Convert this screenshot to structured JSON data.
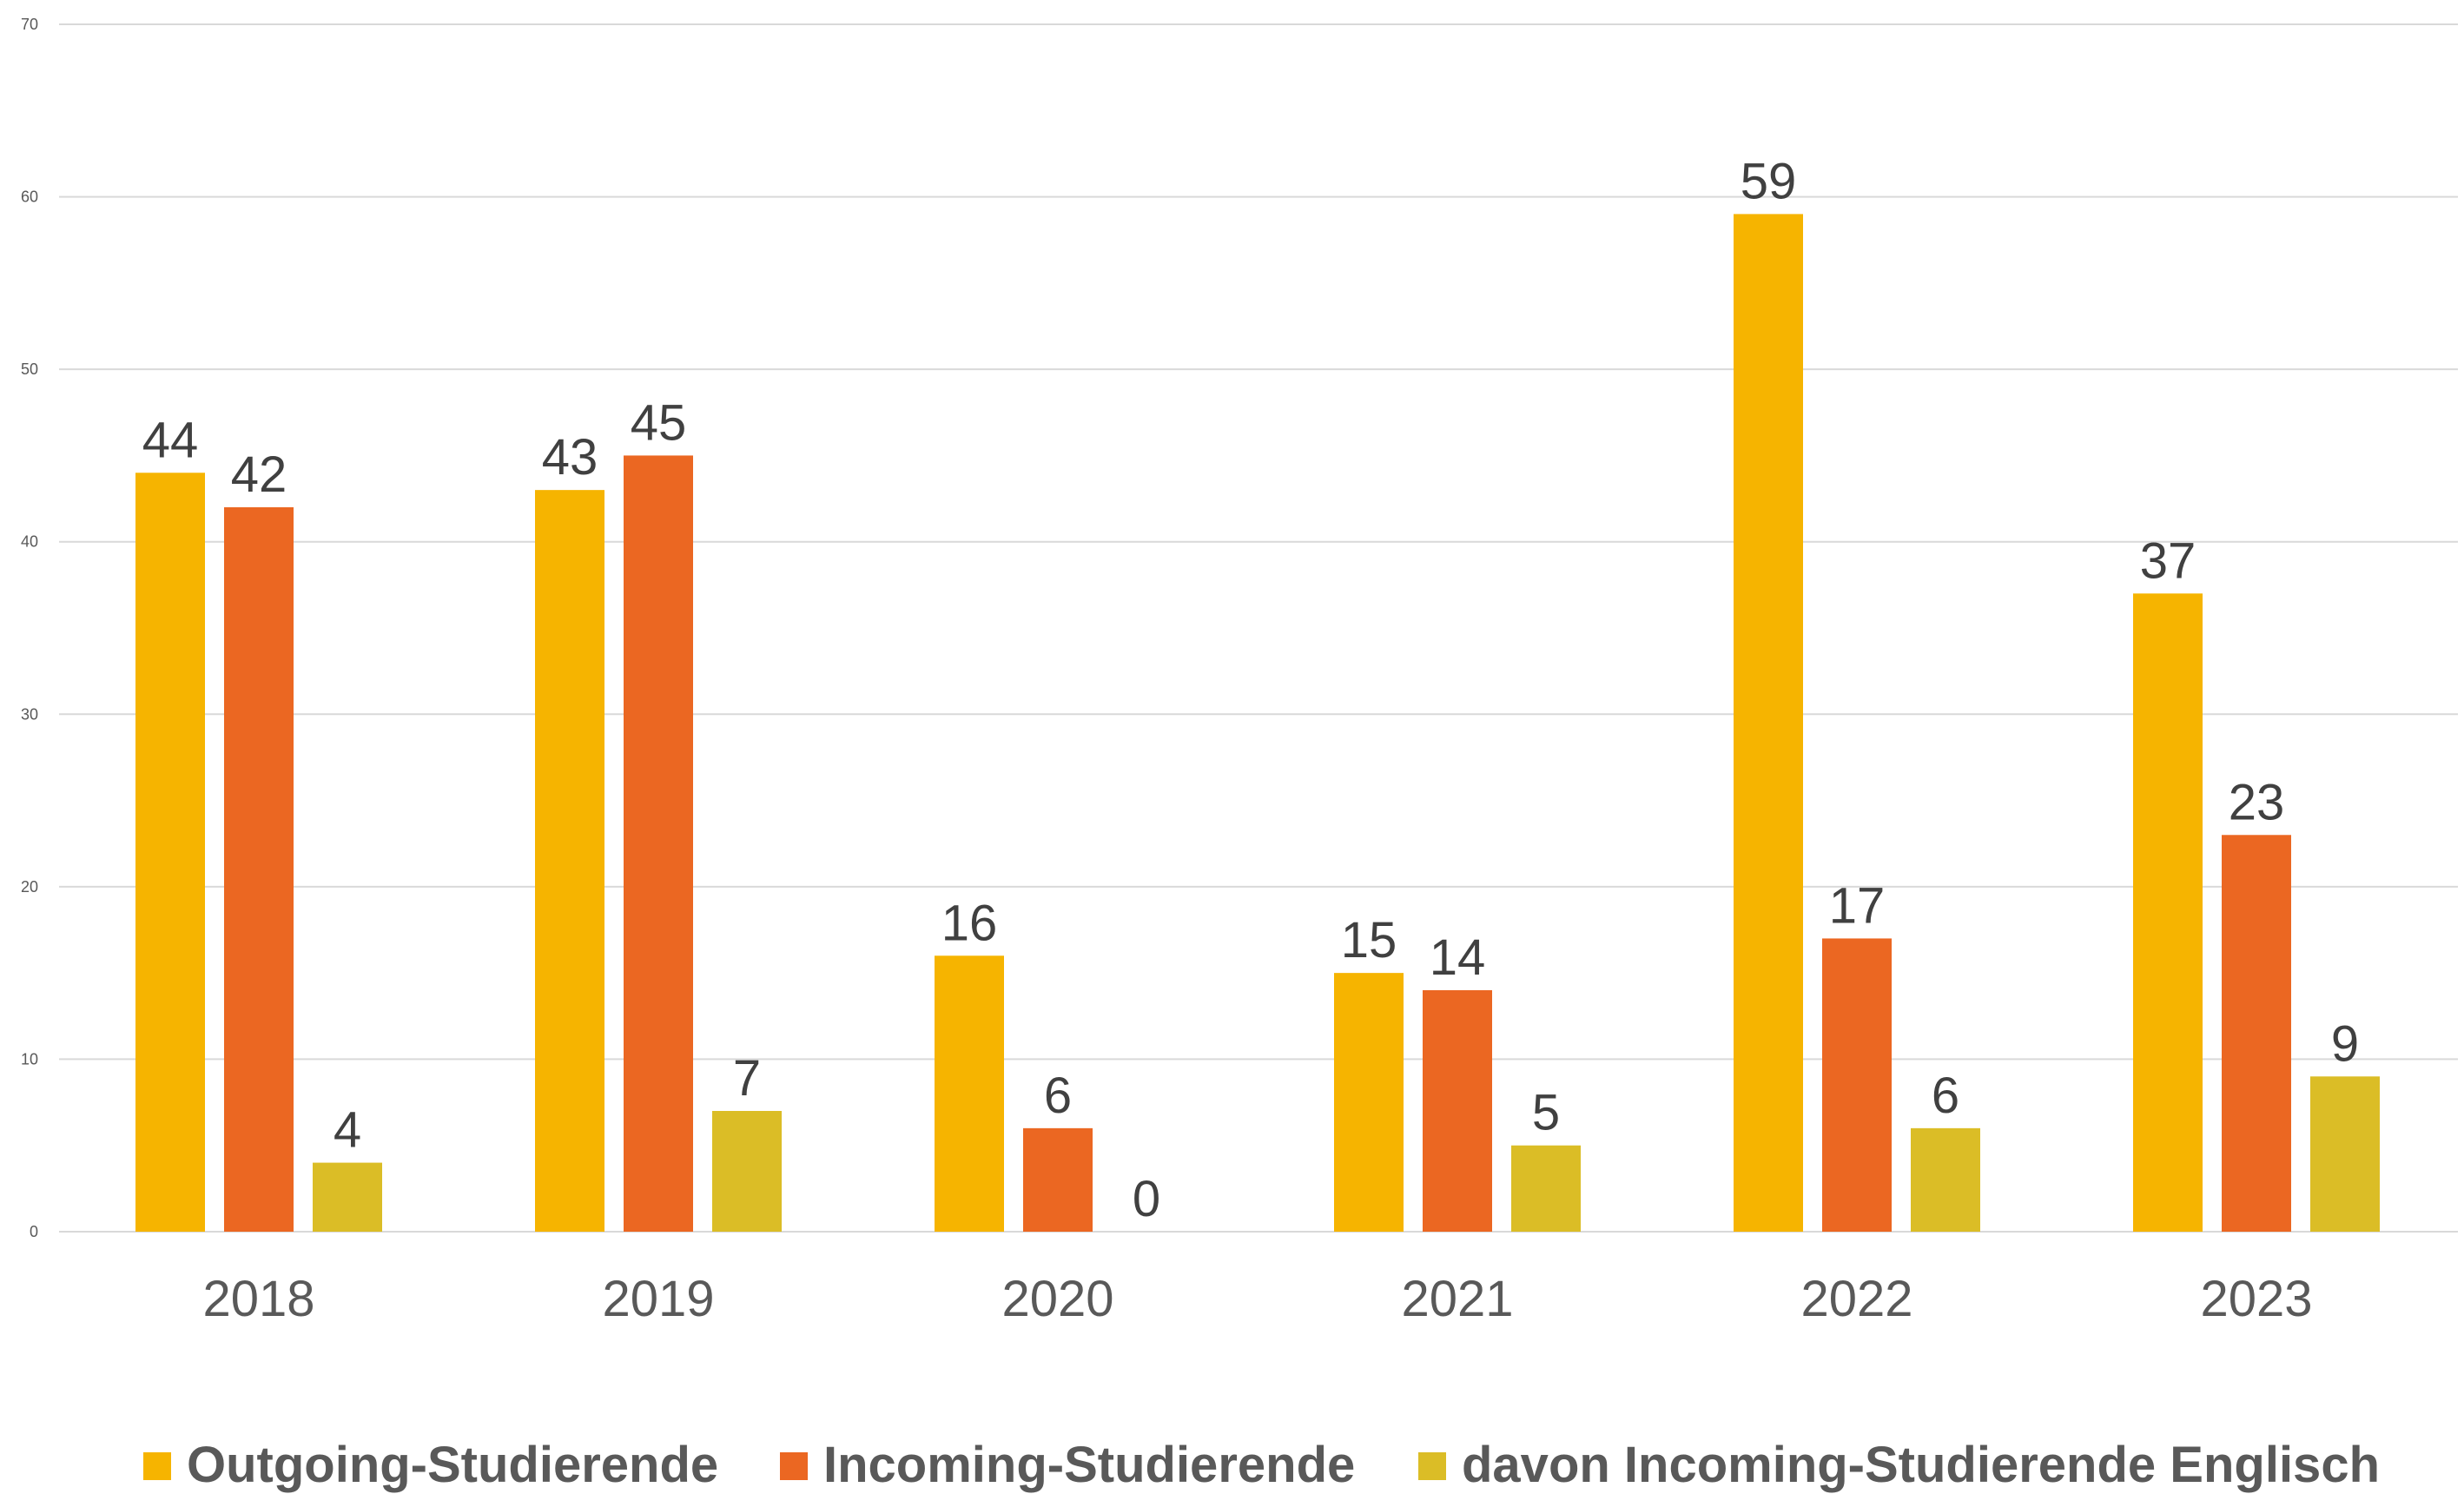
{
  "chart_data": {
    "type": "bar",
    "categories": [
      "2018",
      "2019",
      "2020",
      "2021",
      "2022",
      "2023"
    ],
    "series": [
      {
        "name": "Outgoing-Studierende",
        "color": "#f6b400",
        "values": [
          44,
          43,
          16,
          15,
          59,
          37
        ]
      },
      {
        "name": "Incoming-Studierende",
        "color": "#eb6722",
        "values": [
          42,
          45,
          6,
          14,
          17,
          23
        ]
      },
      {
        "name": "davon Incoming-Studierende Englisch",
        "color": "#dbbd26",
        "values": [
          4,
          7,
          0,
          5,
          6,
          9
        ]
      }
    ],
    "ylim": [
      0,
      70
    ],
    "yticks": [
      0,
      10,
      20,
      30,
      40,
      50,
      60,
      70
    ],
    "grid": true,
    "data_labels": true,
    "legend_position": "bottom"
  }
}
